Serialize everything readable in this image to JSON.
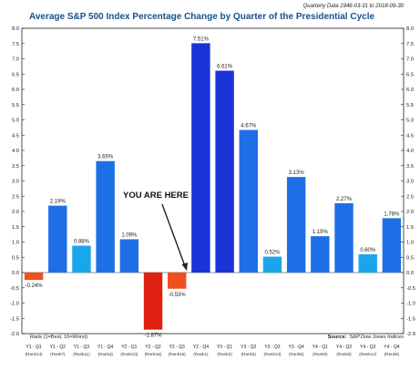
{
  "chart_data": {
    "type": "bar",
    "title": "Average S&P 500 Index Percentage Change by Quarter of the Presidential Cycle",
    "subtitle": "Quarterly Data 1946-03-31 to 2018-09-30",
    "annotation": "YOU ARE HERE",
    "rank_note": "Rank (1=Best, 16=Worst)",
    "source_label": "Source:",
    "source_text": "S&P Dow Jones Indices",
    "ylim": [
      -2.0,
      8.0
    ],
    "ytick_step": 0.5,
    "grid": false,
    "categories": [
      "Y1 - Q1",
      "Y1 - Q2",
      "Y1 - Q3",
      "Y1 - Q4",
      "Y2 - Q1",
      "Y2 - Q2",
      "Y2 - Q3",
      "Y2 - Q4",
      "Y3 - Q1",
      "Y3 - Q2",
      "Y3 - Q3",
      "Y3 - Q4",
      "Y4 - Q1",
      "Y4 - Q2",
      "Y4 - Q3",
      "Y4 - Q4"
    ],
    "ranks": [
      "(Rank14)",
      "(Rank7)",
      "(Rank11)",
      "(Rank4)",
      "(Rank10)",
      "(Rank16)",
      "(Rank15)",
      "(Rank1)",
      "(Rank2)",
      "(Rank3)",
      "(Rank13)",
      "(Rank5)",
      "(Rank9)",
      "(Rank6)",
      "(Rank12)",
      "(Rank8)"
    ],
    "values": [
      -0.24,
      2.19,
      0.88,
      3.65,
      1.09,
      -1.87,
      -0.53,
      7.51,
      6.61,
      4.67,
      0.52,
      3.13,
      1.19,
      2.27,
      0.6,
      1.78
    ],
    "value_labels": [
      "-0.24%",
      "2.19%",
      "0.88%",
      "3.65%",
      "1.09%",
      "-1.87%",
      "-0.53%",
      "7.51%",
      "6.61%",
      "4.67%",
      "0.52%",
      "3.13%",
      "1.19%",
      "2.27%",
      "0.60%",
      "1.78%"
    ],
    "colors": {
      "negative": "#f0501e",
      "negative_worst": "#e02010",
      "top": "#1a33d9",
      "mid": "#1e6fe6",
      "light": "#1aa6ea",
      "axis": "#222222",
      "title": "#1b4f8c"
    }
  }
}
